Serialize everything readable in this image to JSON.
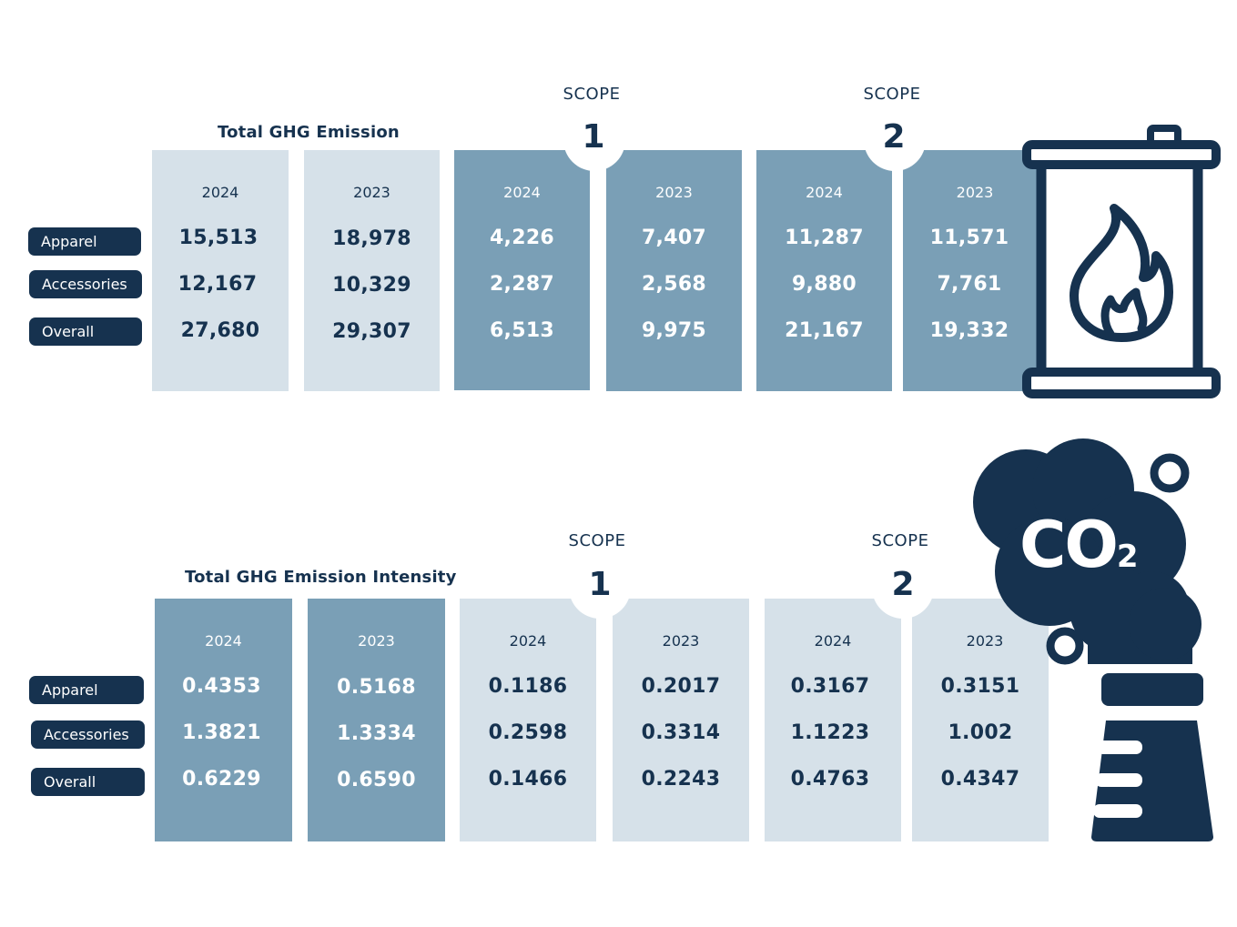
{
  "row_labels": [
    "Apparel",
    "Accessories",
    "Overall"
  ],
  "emission": {
    "title": "Total GHG Emission",
    "scope_label": "SCOPE",
    "scope1_number": "1",
    "scope2_number": "2",
    "columns": [
      {
        "year": "2024",
        "values": [
          "15,513",
          "12,167",
          "27,680"
        ]
      },
      {
        "year": "2023",
        "values": [
          "18,978",
          "10,329",
          "29,307"
        ]
      },
      {
        "year": "2024",
        "values": [
          "4,226",
          "2,287",
          "6,513"
        ]
      },
      {
        "year": "2023",
        "values": [
          "7,407",
          "2,568",
          "9,975"
        ]
      },
      {
        "year": "2024",
        "values": [
          "11,287",
          "9,880",
          "21,167"
        ]
      },
      {
        "year": "2023",
        "values": [
          "11,571",
          "7,761",
          "19,332"
        ]
      }
    ]
  },
  "intensity": {
    "title": "Total GHG Emission Intensity",
    "scope_label": "SCOPE",
    "scope1_number": "1",
    "scope2_number": "2",
    "columns": [
      {
        "year": "2024",
        "values": [
          "0.4353",
          "1.3821",
          "0.6229"
        ]
      },
      {
        "year": "2023",
        "values": [
          "0.5168",
          "1.3334",
          "0.6590"
        ]
      },
      {
        "year": "2024",
        "values": [
          "0.1186",
          "0.2598",
          "0.1466"
        ]
      },
      {
        "year": "2023",
        "values": [
          "0.2017",
          "0.3314",
          "0.2243"
        ]
      },
      {
        "year": "2024",
        "values": [
          "0.3167",
          "1.1223",
          "0.4763"
        ]
      },
      {
        "year": "2023",
        "values": [
          "0.3151",
          "1.002",
          "0.4347"
        ]
      }
    ]
  },
  "co2_label": "CO",
  "co2_subscript": "2",
  "icons": {
    "top": "fuel-barrel-flame-icon",
    "bottom": "smokestack-co2-cloud-icon"
  },
  "colors": {
    "navy": "#16324f",
    "light_column": "#d6e1e9",
    "dark_column": "#7a9fb6"
  }
}
